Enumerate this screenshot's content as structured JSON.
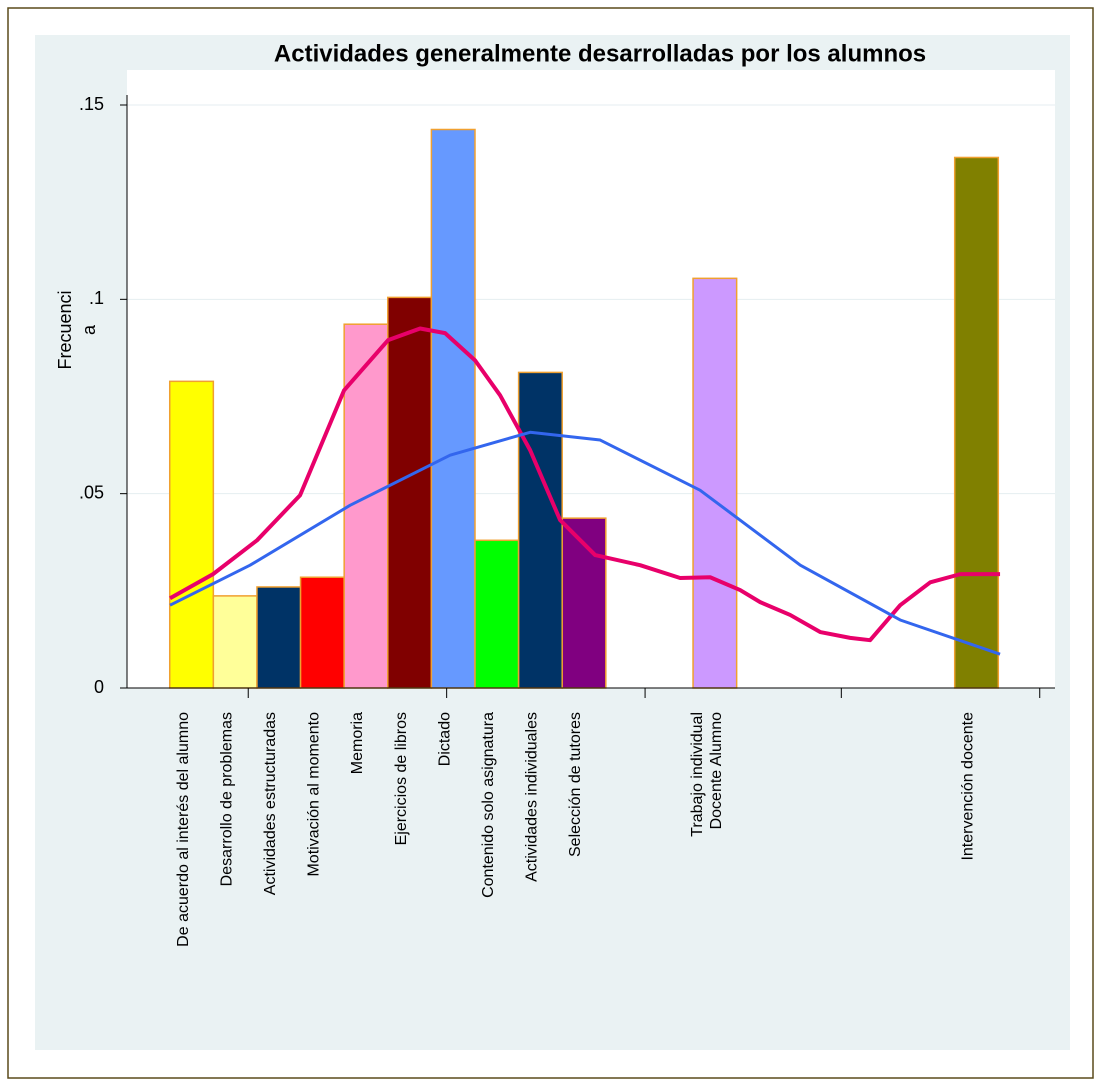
{
  "chart_data": {
    "type": "bar",
    "title": "Actividades generalmente desarrolladas por los alumnos",
    "ylabel": [
      "Frecuenci",
      "a"
    ],
    "categories": [
      "De acuerdo al interés del  alumno",
      "Desarrollo de problemas",
      "Actividades estructuradas",
      "Motivación al momento",
      "Memoria",
      "Ejercicios de libros",
      "Dictado",
      "Contenido solo asignatura",
      "Actividades individuales",
      "Selección de tutores",
      [
        "Trabajo individual",
        "Docente Alumno"
      ],
      "Intervención docente"
    ],
    "x": [
      1,
      2,
      3,
      4,
      5,
      6,
      7,
      8,
      9,
      10,
      13,
      19
    ],
    "values": [
      0.0789,
      0.0237,
      0.026,
      0.0285,
      0.0936,
      0.1005,
      0.1437,
      0.038,
      0.0812,
      0.0437,
      0.1054,
      0.1365
    ],
    "colors": [
      "#ffff00",
      "#ffff99",
      "#003366",
      "#ff0000",
      "#ff99cc",
      "#800000",
      "#6699ff",
      "#00ff00",
      "#003366",
      "#800080",
      "#cc99ff",
      "#808000"
    ],
    "edgecolor": "#f0a030",
    "bar_width": 1,
    "curves": [
      {
        "color": "#e8006a",
        "x": [
          0.507,
          1.493,
          2.502,
          3.489,
          4.498,
          5.507,
          6.241,
          6.814,
          7.502,
          8.076,
          8.764,
          9.452,
          10.255,
          11.287,
          12.204,
          12.892,
          13.58,
          14.039,
          14.727,
          15.415,
          16.103,
          16.56,
          17.25,
          17.94,
          18.63,
          19.54
        ],
        "values": [
          0.0231,
          0.0293,
          0.038,
          0.0496,
          0.0766,
          0.0895,
          0.0925,
          0.0913,
          0.0843,
          0.0753,
          0.0612,
          0.0432,
          0.0342,
          0.0316,
          0.0283,
          0.0285,
          0.0252,
          0.0221,
          0.0188,
          0.0144,
          0.0129,
          0.0123,
          0.0213,
          0.0272,
          0.0293,
          0.0293
        ]
      },
      {
        "color": "#3366ee",
        "x": [
          0.507,
          2.342,
          4.635,
          6.929,
          8.764,
          10.37,
          12.66,
          14.96,
          17.25,
          19.54
        ],
        "values": [
          0.0213,
          0.0316,
          0.047,
          0.0599,
          0.0658,
          0.0638,
          0.0509,
          0.0316,
          0.0175,
          0.0087
        ]
      }
    ],
    "xlim": [
      -0.48,
      20.8
    ],
    "xticks": [
      2.3,
      6.85,
      11.4,
      15.9,
      20.45
    ],
    "ylim": [
      0,
      0.15
    ],
    "yticks": [
      0,
      {
        "value": 0.05,
        "label": ".05"
      },
      {
        "value": 0.1,
        "label": ".1"
      },
      {
        "value": 0.15,
        "label": ".15"
      }
    ],
    "grid": true
  }
}
